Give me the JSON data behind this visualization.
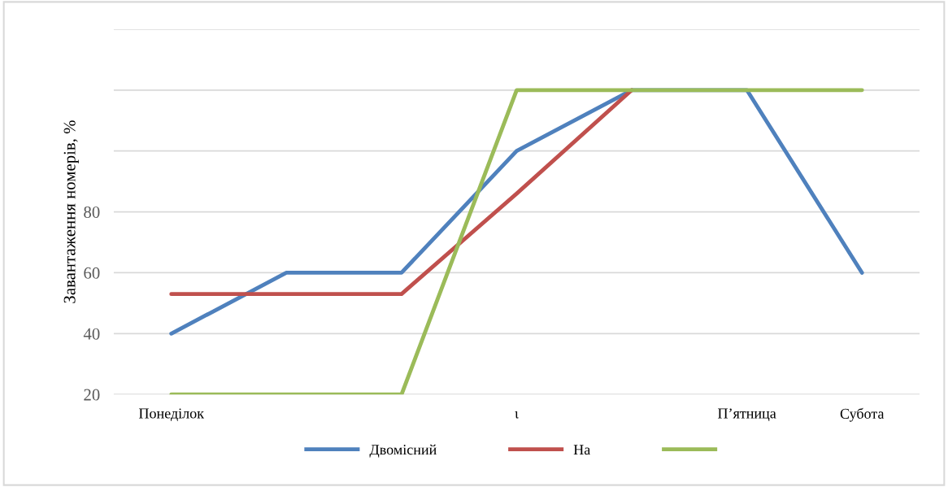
{
  "chart_data": {
    "type": "line",
    "ylabel": "Завантаження номерів, %",
    "categories": [
      "Понеділок",
      null,
      null,
      "ι",
      null,
      "П’ятница",
      "Субота"
    ],
    "series": [
      {
        "name": "Двомісний",
        "color": "#4f81bd",
        "values": [
          40,
          60,
          60,
          100,
          120,
          120,
          60
        ]
      },
      {
        "name": "На",
        "color": "#c0504d",
        "values": [
          53,
          53,
          53,
          86,
          120,
          null,
          null
        ]
      },
      {
        "color": "#9bbb59",
        "values": [
          20,
          20,
          20,
          120,
          120,
          120,
          120
        ]
      }
    ],
    "ylim": [
      20,
      140
    ],
    "yticks": [
      20,
      40,
      60,
      80,
      {
        "value": 100,
        "label": null
      },
      {
        "value": 120,
        "label": null
      },
      {
        "value": 140,
        "label": null
      }
    ],
    "grid": "y",
    "legend": "bottom",
    "marker": "none",
    "line_style": "solid"
  }
}
